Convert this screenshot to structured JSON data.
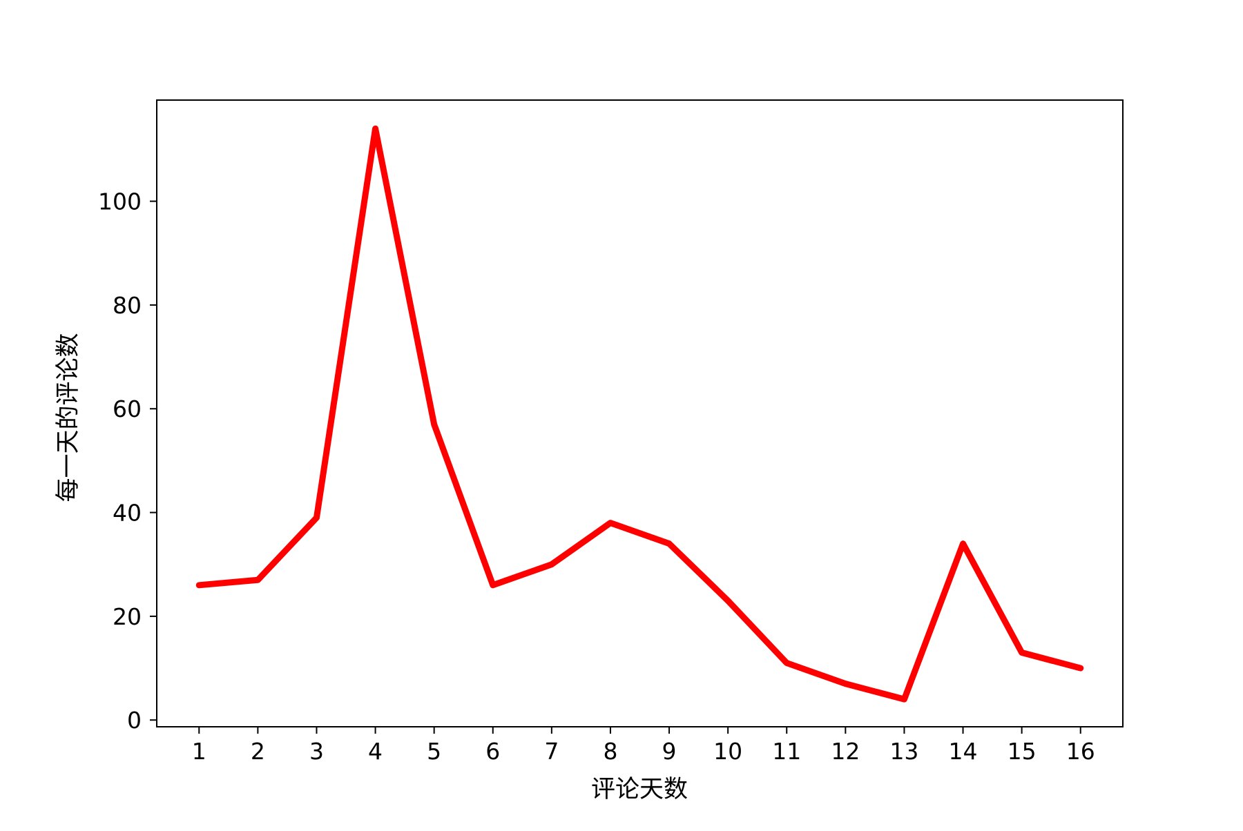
{
  "chart_data": {
    "type": "line",
    "title": "",
    "xlabel": "评论天数",
    "ylabel": "每一天的评论数",
    "x": [
      1,
      2,
      3,
      4,
      5,
      6,
      7,
      8,
      9,
      10,
      11,
      12,
      13,
      14,
      15,
      16
    ],
    "xticks": [
      "1",
      "2",
      "3",
      "4",
      "5",
      "6",
      "7",
      "8",
      "9",
      "10",
      "11",
      "12",
      "13",
      "14",
      "15",
      "16"
    ],
    "yticks": [
      "0",
      "20",
      "40",
      "60",
      "80",
      "100"
    ],
    "ylim": [
      -1.3,
      119.5
    ],
    "xlim": [
      0.28,
      16.72
    ],
    "grid": false,
    "legend": "none",
    "series": [
      {
        "color": "#ff0000",
        "values": [
          26,
          27,
          39,
          114,
          57,
          26,
          30,
          38,
          34,
          23,
          11,
          7,
          4,
          34,
          13,
          10
        ]
      }
    ]
  }
}
